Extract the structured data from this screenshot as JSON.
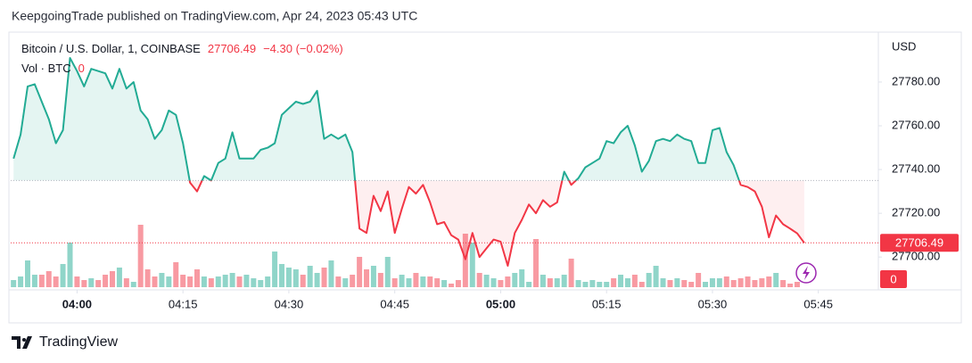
{
  "header": "KeepgoingTrade published on TradingView.com, Apr 24, 2023 05:43 UTC",
  "brand": "TradingView",
  "chart_data": {
    "type": "baseline",
    "title": "Bitcoin / U.S. Dollar, 1, COINBASE",
    "change": "−4.30 (−0.02%)",
    "currency": "USD",
    "x": [
      231,
      232,
      233,
      234,
      235,
      236,
      237,
      238,
      239,
      240,
      241,
      242,
      243,
      244,
      245,
      246,
      247,
      248,
      249,
      250,
      251,
      252,
      253,
      254,
      255,
      256,
      257,
      258,
      259,
      260,
      261,
      262,
      263,
      264,
      265,
      266,
      267,
      268,
      269,
      270,
      271,
      272,
      273,
      274,
      275,
      276,
      277,
      278,
      279,
      280,
      281,
      282,
      283,
      284,
      285,
      286,
      287,
      288,
      289,
      290,
      291,
      292,
      293,
      294,
      295,
      296,
      297,
      298,
      299,
      300,
      301,
      302,
      303,
      304,
      305,
      306,
      307,
      308,
      309,
      310,
      311,
      312,
      313,
      314,
      315,
      316,
      317,
      318,
      319,
      320,
      321,
      322,
      323,
      324,
      325,
      326,
      327,
      328,
      329,
      330,
      331,
      332,
      333,
      334,
      335,
      336,
      337,
      338,
      339,
      340,
      341,
      342,
      343
    ],
    "values": [
      27745,
      27756,
      27778,
      27779,
      27771,
      27763,
      27752,
      27758,
      27791,
      27785,
      27778,
      27786,
      27785,
      27784,
      27777,
      27786,
      27777,
      27780,
      27767,
      27763,
      27754,
      27758,
      27767,
      27765,
      27752,
      27734,
      27730,
      27737,
      27735,
      27743,
      27745,
      27757,
      27745,
      27745,
      27745,
      27749,
      27750,
      27752,
      27765,
      27768,
      27771,
      27770,
      27771,
      27776,
      27754,
      27756,
      27754,
      27756,
      27748,
      27713,
      27711,
      27728,
      27721,
      27730,
      27711,
      27722,
      27732,
      27729,
      27733,
      27725,
      27715,
      27716,
      27710,
      27708,
      27699,
      27711,
      27700,
      27704,
      27708,
      27707,
      27696,
      27711,
      27717,
      27724,
      27720,
      27726,
      27723,
      27725,
      27739,
      27733,
      27736,
      27741,
      27743,
      27745,
      27753,
      27752,
      27757,
      27760,
      27751,
      27739,
      27744,
      27753,
      27754,
      27753,
      27756,
      27754,
      27753,
      27743,
      27743,
      27758,
      27759,
      27748,
      27742,
      27733,
      27732,
      27730,
      27723,
      27709,
      27719,
      27715,
      27713,
      27710.79,
      27706.49
    ],
    "baseline": 27735,
    "volume": {
      "name": "Vol · BTC",
      "values": [
        8,
        12,
        30,
        14,
        14,
        18,
        12,
        26,
        50,
        12,
        8,
        10,
        8,
        14,
        18,
        22,
        10,
        6,
        70,
        20,
        12,
        16,
        12,
        28,
        14,
        12,
        20,
        12,
        10,
        12,
        14,
        16,
        12,
        14,
        10,
        8,
        12,
        40,
        26,
        22,
        20,
        14,
        24,
        16,
        22,
        30,
        12,
        10,
        14,
        34,
        20,
        24,
        16,
        34,
        10,
        14,
        10,
        16,
        12,
        12,
        10,
        8,
        4,
        8,
        60,
        50,
        16,
        14,
        10,
        8,
        12,
        16,
        20,
        6,
        54,
        14,
        10,
        10,
        14,
        32,
        8,
        6,
        8,
        6,
        6,
        10,
        14,
        10,
        14,
        6,
        16,
        24,
        10,
        8,
        10,
        8,
        6,
        16,
        6,
        10,
        10,
        12,
        8,
        10,
        12,
        8,
        10,
        12,
        16,
        8,
        4,
        6,
        0
      ]
    },
    "colors": {
      "up": "#22ab94",
      "down": "#f23645"
    },
    "xlim": [
      230.6,
      353.5
    ],
    "xticks": [
      {
        "value": 240,
        "label": "04:00"
      },
      {
        "value": 255,
        "label": "04:15"
      },
      {
        "value": 270,
        "label": "04:30"
      },
      {
        "value": 285,
        "label": "04:45"
      },
      {
        "value": 300,
        "label": "05:00"
      },
      {
        "value": 315,
        "label": "05:15"
      },
      {
        "value": 330,
        "label": "05:30"
      },
      {
        "value": 345,
        "label": "05:45"
      }
    ],
    "ylim": [
      27685,
      27802
    ],
    "yticks": [
      {
        "value": 27700,
        "label": "27700.00"
      },
      {
        "value": 27720,
        "label": "27720.00"
      },
      {
        "value": 27740,
        "label": "27740.00"
      },
      {
        "value": 27760,
        "label": "27760.00"
      },
      {
        "value": 27780,
        "label": "27780.00"
      }
    ],
    "grid": false
  }
}
